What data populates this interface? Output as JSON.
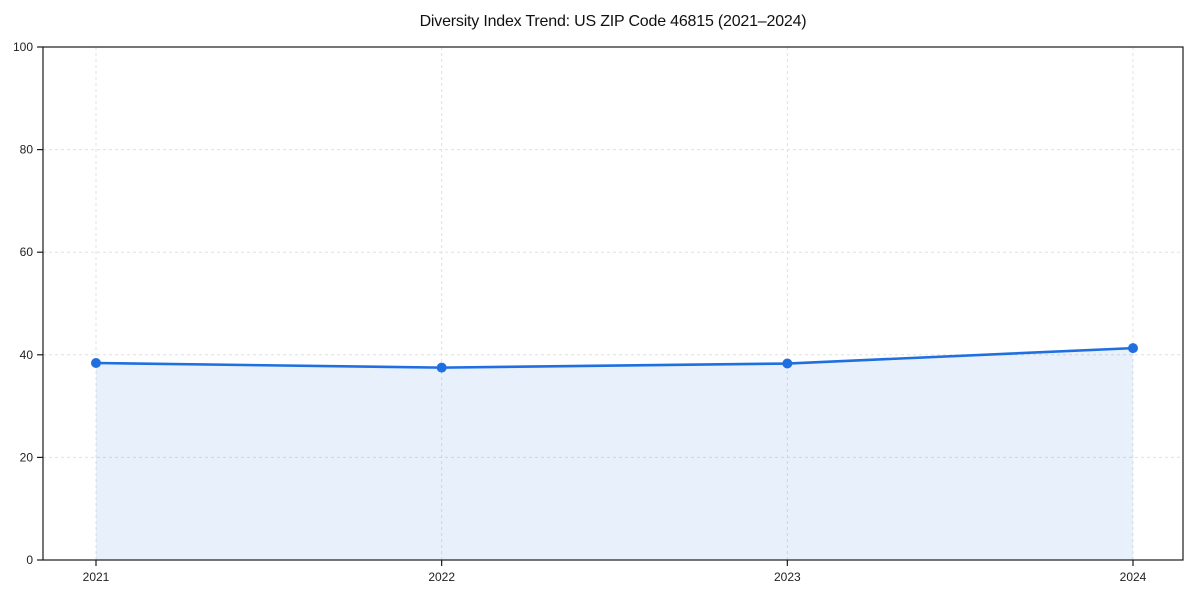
{
  "chart_data": {
    "type": "area",
    "title": "Diversity Index Trend: US ZIP Code 46815 (2021–2024)",
    "categories": [
      "2021",
      "2022",
      "2023",
      "2024"
    ],
    "x": [
      2021,
      2022,
      2023,
      2024
    ],
    "series": [
      {
        "name": "Diversity Index",
        "values": [
          38.4,
          37.5,
          38.3,
          41.3
        ]
      }
    ],
    "xlabel": "",
    "ylabel": "",
    "ylim": [
      0,
      100
    ],
    "yticks": [
      0,
      20,
      40,
      60,
      80,
      100
    ],
    "grid": true,
    "grid_style": "dashed",
    "legend": false,
    "colors": {
      "line": "#1f6fe0",
      "marker": "#1f6fe0",
      "fill": "rgba(31,111,224,0.10)",
      "grid": "#e0e0e0",
      "spine": "#1a1a1a",
      "tick_label": "#222222",
      "title": "#111111",
      "background": "#ffffff"
    }
  }
}
